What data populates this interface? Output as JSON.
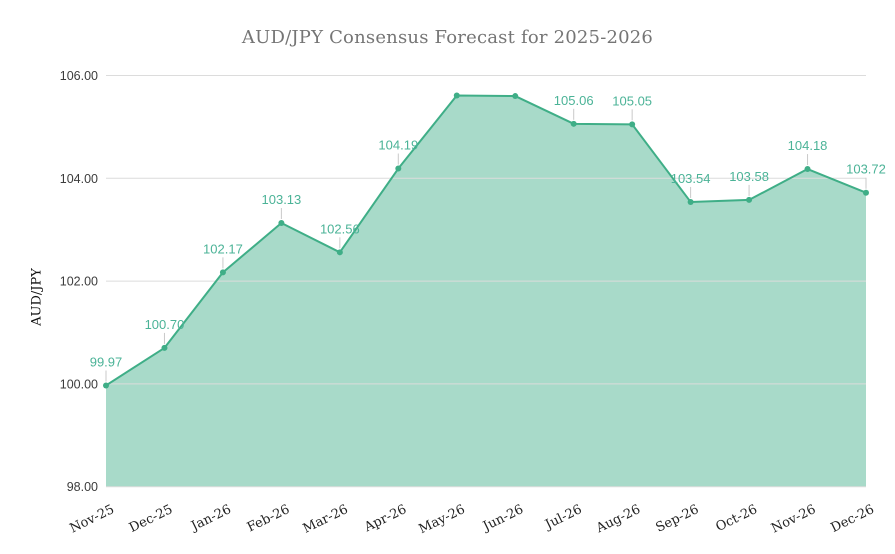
{
  "chart_data": {
    "type": "area",
    "title": "AUD/JPY Consensus Forecast for 2025-2026",
    "xlabel": "",
    "ylabel": "AUD/JPY",
    "ylim": [
      98,
      106
    ],
    "y_ticks": [
      "98.00",
      "100.00",
      "102.00",
      "104.00",
      "106.00"
    ],
    "categories": [
      "Nov-25",
      "Dec-25",
      "Jan-26",
      "Feb-26",
      "Mar-26",
      "Apr-26",
      "May-26",
      "Jun-26",
      "Jul-26",
      "Aug-26",
      "Sep-26",
      "Oct-26",
      "Nov-26",
      "Dec-26"
    ],
    "values": [
      99.97,
      100.7,
      102.17,
      103.13,
      102.56,
      104.19,
      105.61,
      105.6,
      105.06,
      105.05,
      103.54,
      103.58,
      104.18,
      103.72
    ],
    "point_labels": [
      "99.97",
      "100.70",
      "102.17",
      "103.13",
      "102.56",
      "104.19",
      "",
      "",
      "105.06",
      "105.05",
      "103.54",
      "103.58",
      "104.18",
      "103.72"
    ],
    "grid": "horizontal",
    "legend": "none",
    "x_tick_rotation": -26
  },
  "colors": {
    "series": "#3fae87",
    "series_fill_opacity": 0.45,
    "annotation": "#4bb397",
    "gridline": "#dcdcdc",
    "stem": "#c9c9c9",
    "title": "#757575",
    "axis_text": "#3c3c3c"
  }
}
